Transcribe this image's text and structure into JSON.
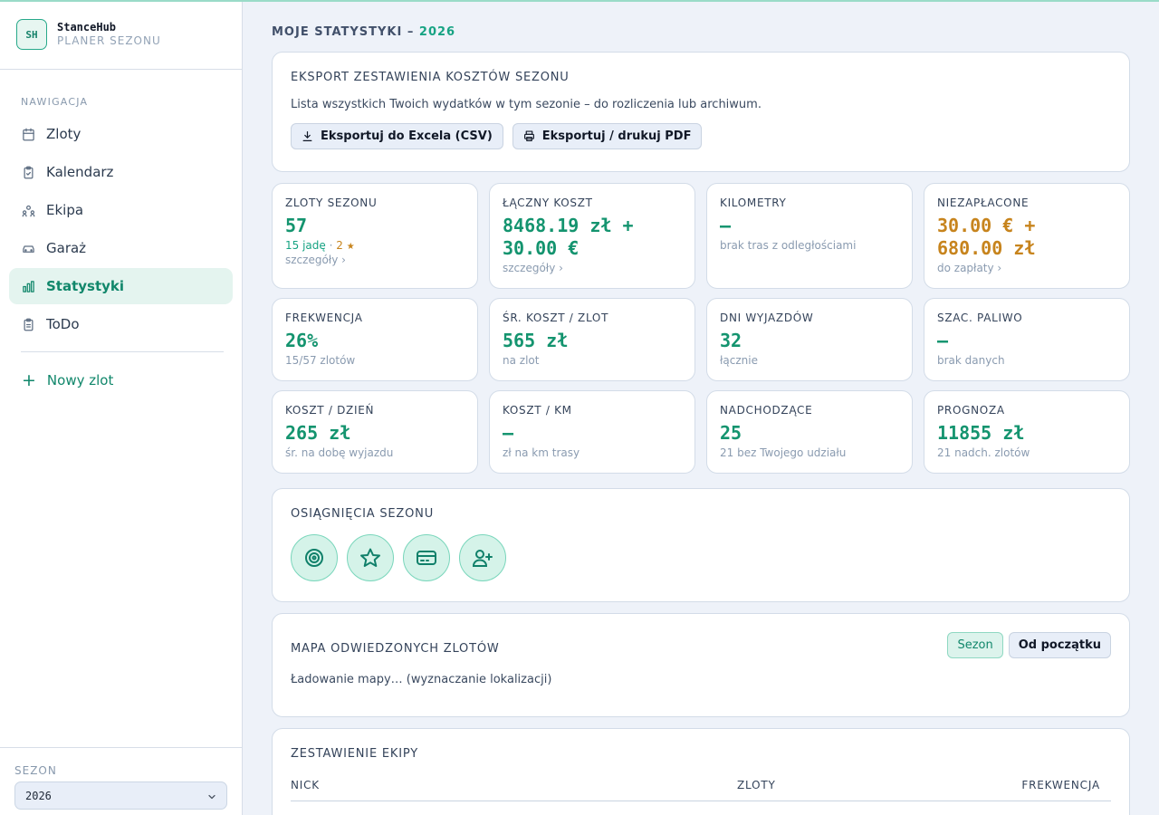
{
  "app": {
    "logo": "SH",
    "name": "StanceHub",
    "subtitle": "PLANER SEZONU"
  },
  "nav": {
    "title": "NAWIGACJA",
    "items": [
      {
        "label": "Zloty",
        "icon": "calendar-icon"
      },
      {
        "label": "Kalendarz",
        "icon": "clipboard-check-icon"
      },
      {
        "label": "Ekipa",
        "icon": "team-icon"
      },
      {
        "label": "Garaż",
        "icon": "car-icon"
      },
      {
        "label": "Statystyki",
        "icon": "bar-chart-icon",
        "active": true
      },
      {
        "label": "ToDo",
        "icon": "checklist-icon"
      }
    ],
    "new_zlot": "Nowy zlot"
  },
  "season": {
    "label": "SEZON",
    "value": "2026"
  },
  "page": {
    "title": "MOJE STATYSTYKI – ",
    "year": "2026"
  },
  "export": {
    "title": "EKSPORT ZESTAWIENIA KOSZTÓW SEZONU",
    "description": "Lista wszystkich Twoich wydatków w tym sezonie – do rozliczenia lub archiwum.",
    "csv_label": "Eksportuj do Excela (CSV)",
    "pdf_label": "Eksportuj / drukuj PDF"
  },
  "stats": {
    "zloty_sezonu": {
      "label": "ZLOTY SEZONU",
      "value": "57",
      "sub_a": "15 jadę",
      "sep": " · ",
      "sub_b": "2",
      "star": "★",
      "link": "szczegóły ›"
    },
    "laczny_koszt": {
      "label": "ŁĄCZNY KOSZT",
      "value1": "8468.19 zł +",
      "value2": "30.00 €",
      "link": "szczegóły ›"
    },
    "kilometry": {
      "label": "KILOMETRY",
      "value": "—",
      "sub": "brak tras z odległościami"
    },
    "niezaplacone": {
      "label": "NIEZAPŁACONE",
      "value1": "30.00 € +",
      "value2": "680.00 zł",
      "link": "do zapłaty ›"
    },
    "frekwencja": {
      "label": "FREKWENCJA",
      "value": "26%",
      "sub": "15/57 zlotów"
    },
    "sr_koszt": {
      "label": "ŚR. KOSZT / ZLOT",
      "value": "565 zł",
      "sub": "na zlot"
    },
    "dni_wyjazdow": {
      "label": "DNI WYJAZDÓW",
      "value": "32",
      "sub": "łącznie"
    },
    "paliwo": {
      "label": "SZAC. PALIWO",
      "value": "—",
      "sub": "brak danych"
    },
    "koszt_dzien": {
      "label": "KOSZT / DZIEŃ",
      "value": "265 zł",
      "sub": "śr. na dobę wyjazdu"
    },
    "koszt_km": {
      "label": "KOSZT / KM",
      "value": "—",
      "sub": "zł na km trasy"
    },
    "nadchodzace": {
      "label": "NADCHODZĄCE",
      "value": "25",
      "sub": "21 bez Twojego udziału"
    },
    "prognoza": {
      "label": "PROGNOZA",
      "value": "11855 zł",
      "sub": "21 nadch. zlotów"
    }
  },
  "achievements": {
    "title": "OSIĄGNIĘCIA SEZONU",
    "badges": [
      "target-icon",
      "star-icon",
      "credit-card-icon",
      "user-plus-icon"
    ]
  },
  "map": {
    "title": "MAPA ODWIEDZONYCH ZLOTÓW",
    "toggle_season": "Sezon",
    "toggle_all": "Od początku",
    "status": "Ładowanie mapy… (wyznaczanie lokalizacji)"
  },
  "team": {
    "title": "ZESTAWIENIE EKIPY",
    "columns": [
      "NICK",
      "ZLOTY",
      "FREKWENCJA"
    ]
  },
  "colors": {
    "accent": "#14946f",
    "warning": "#c7841d",
    "background": "#eef2f9"
  }
}
